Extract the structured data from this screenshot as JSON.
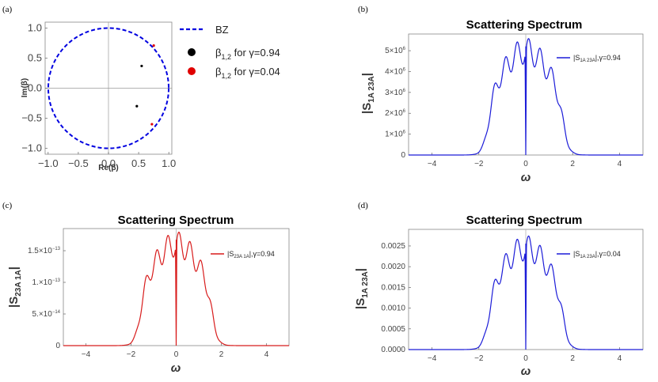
{
  "panel_labels": [
    "(a)",
    "(b)",
    "(c)",
    "(d)"
  ],
  "chart_data": [
    {
      "panel": "(a)",
      "type": "scatter",
      "title": "",
      "xlabel": "Re(β)",
      "ylabel": "Im(β)",
      "xlim": [
        -1.05,
        1.05
      ],
      "ylim": [
        -1.1,
        1.1
      ],
      "xticks": [
        -1.0,
        -0.5,
        0.0,
        0.5,
        1.0
      ],
      "xtick_labels": [
        "−1.0",
        "−0.5",
        "0.0",
        "0.5",
        "1.0"
      ],
      "yticks": [
        1.0,
        0.5,
        0.0,
        -0.5,
        -1.0
      ],
      "ytick_labels": [
        "1.0",
        "0.5",
        "0.0",
        "−0.5",
        "−1.0"
      ],
      "legend_position": "right",
      "series": [
        {
          "name": "BZ",
          "kind": "circle",
          "radius": 1.0,
          "color": "#0000e0",
          "style": "dashed"
        },
        {
          "name": "β1,2 for γ=0.94",
          "kind": "points",
          "color": "#000000",
          "x": [
            0.55,
            0.47
          ],
          "y": [
            0.37,
            -0.3
          ]
        },
        {
          "name": "β1,2 for γ=0.04",
          "kind": "points",
          "color": "#e00000",
          "x": [
            0.75,
            0.72
          ],
          "y": [
            0.71,
            -0.6
          ]
        }
      ],
      "legend_labels": {
        "bz": "BZ",
        "black": {
          "pre": "β",
          "sub": "1,2",
          "post": " for γ=0.94"
        },
        "red": {
          "pre": "β",
          "sub": "1,2",
          "post": " for γ=0.04"
        }
      }
    },
    {
      "panel": "(b)",
      "type": "line",
      "title": "Scattering Spectrum",
      "xlabel": "ω",
      "ylabel": {
        "base": "|S",
        "sub": "1A 23A",
        "end": "|"
      },
      "xlim": [
        -5,
        5
      ],
      "ylim": [
        0,
        5800000
      ],
      "xticks": [
        -4,
        -2,
        0,
        2,
        4
      ],
      "xtick_labels": [
        "−4",
        "−2",
        "0",
        "2",
        "4"
      ],
      "yticks": [
        0,
        1000000,
        2000000,
        3000000,
        4000000,
        5000000
      ],
      "ytick_labels": [
        {
          "m": "0",
          "e": ""
        },
        {
          "m": "1×10",
          "e": "6"
        },
        {
          "m": "2×10",
          "e": "6"
        },
        {
          "m": "3×10",
          "e": "6"
        },
        {
          "m": "4×10",
          "e": "6"
        },
        {
          "m": "5×10",
          "e": "6"
        }
      ],
      "color": "#1c1cd8",
      "legend": {
        "pre": "|S",
        "sub": "1A 23A",
        "post": "|,γ=0.94"
      },
      "legend_position": "top-right",
      "peak": 5600000,
      "fringe_count": 13,
      "band_edges": [
        -1.6,
        1.6
      ],
      "fringe_depth": 0.22,
      "spike_at_zero": true
    },
    {
      "panel": "(c)",
      "type": "line",
      "title": "Scattering Spectrum",
      "xlabel": "ω",
      "ylabel": {
        "base": "|S",
        "sub": "23A 1A",
        "end": "|"
      },
      "xlim": [
        -5,
        5
      ],
      "ylim": [
        0,
        1.85e-13
      ],
      "xticks": [
        -4,
        -2,
        0,
        2,
        4
      ],
      "xtick_labels": [
        "−4",
        "−2",
        "0",
        "2",
        "4"
      ],
      "yticks": [
        0,
        5e-14,
        1e-13,
        1.5e-13
      ],
      "ytick_labels": [
        {
          "m": "0",
          "e": ""
        },
        {
          "m": "5.×10",
          "e": "−14"
        },
        {
          "m": "1.×10",
          "e": "−13"
        },
        {
          "m": "1.5×10",
          "e": "−13"
        }
      ],
      "color": "#d81c1c",
      "legend": {
        "pre": "|S",
        "sub": "23A 1A",
        "post": "|,γ=0.94"
      },
      "legend_position": "top-right",
      "peak": 1.8e-13,
      "fringe_count": 13,
      "band_edges": [
        -1.6,
        1.6
      ],
      "fringe_depth": 0.22,
      "spike_at_zero": true
    },
    {
      "panel": "(d)",
      "type": "line",
      "title": "Scattering Spectrum",
      "xlabel": "ω",
      "ylabel": {
        "base": "|S",
        "sub": "1A 23A",
        "end": "|"
      },
      "xlim": [
        -5,
        5
      ],
      "ylim": [
        0,
        0.0029
      ],
      "xticks": [
        -4,
        -2,
        0,
        2,
        4
      ],
      "xtick_labels": [
        "−4",
        "−2",
        "0",
        "2",
        "4"
      ],
      "yticks": [
        0,
        0.0005,
        0.001,
        0.0015,
        0.002,
        0.0025
      ],
      "ytick_labels": [
        {
          "m": "0.0000",
          "e": ""
        },
        {
          "m": "0.0005",
          "e": ""
        },
        {
          "m": "0.0010",
          "e": ""
        },
        {
          "m": "0.0015",
          "e": ""
        },
        {
          "m": "0.0020",
          "e": ""
        },
        {
          "m": "0.0025",
          "e": ""
        }
      ],
      "color": "#1c1cd8",
      "legend": {
        "pre": "|S",
        "sub": "1A 23A",
        "post": "|,γ=0.04"
      },
      "legend_position": "top-right",
      "peak": 0.00275,
      "fringe_count": 13,
      "band_edges": [
        -1.6,
        1.6
      ],
      "fringe_depth": 0.22,
      "spike_at_zero": true
    }
  ]
}
